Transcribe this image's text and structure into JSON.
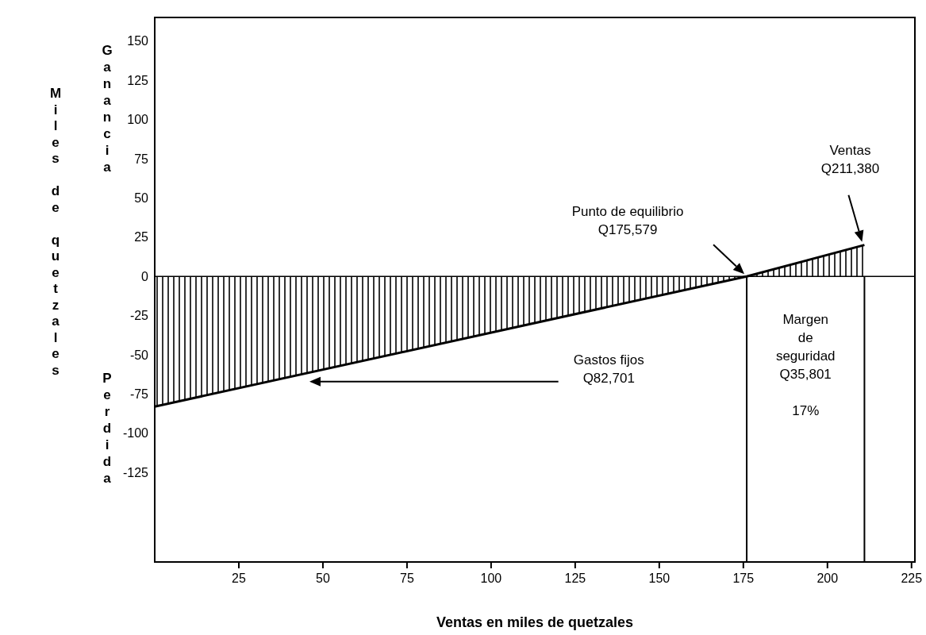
{
  "chart_data": {
    "type": "area",
    "xlabel": "Ventas en miles de quetzales",
    "ylabel": "Miles de quetzales",
    "series": [
      {
        "color": "#000000",
        "x": [
          0,
          176,
          211
        ],
        "values": [
          -83,
          0,
          20
        ]
      }
    ],
    "xlim": [
      0,
      226
    ],
    "xticks": [
      25,
      50,
      75,
      100,
      125,
      150,
      175,
      200,
      225
    ],
    "ylim": [
      -182,
      165
    ],
    "yticks": [
      -125,
      -100,
      -75,
      -50,
      -25,
      0,
      25,
      50,
      75,
      100,
      125,
      150
    ],
    "grid": false,
    "ref_lines": [
      {
        "axis": "y",
        "value": 0
      },
      {
        "axis": "x",
        "value": 176
      },
      {
        "axis": "x",
        "value": 211
      }
    ],
    "annotations": [
      "Ganancia",
      "Perdida",
      "Punto de equilibrio\nQ175,579",
      "Ventas\nQ211,380",
      "Gastos fijos\nQ82,701",
      "Margen\nde\nseguridad\nQ35,801\n\n17%"
    ]
  }
}
